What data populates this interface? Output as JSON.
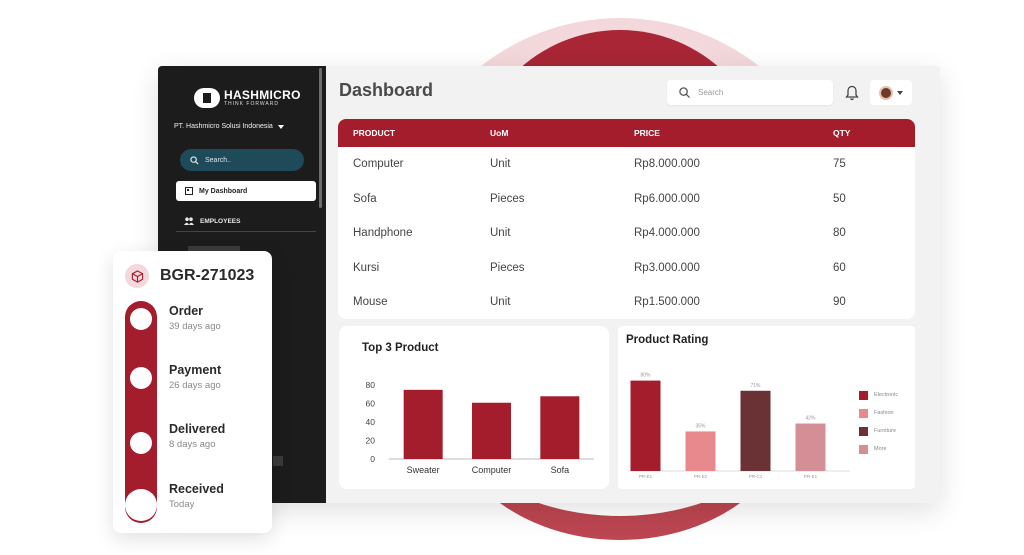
{
  "sidebar": {
    "brand": "HASHMICRO",
    "tagline": "THINK FORWARD",
    "company": "PT. Hashmicro Solusi Indonesia",
    "search_placeholder": "Search..",
    "items": [
      {
        "label": "My Dashboard",
        "icon": "dashboard-icon",
        "active": true
      },
      {
        "label": "EMPLOYEES",
        "icon": "users-icon",
        "active": false
      }
    ]
  },
  "header": {
    "title": "Dashboard",
    "search_placeholder": "Search"
  },
  "table": {
    "columns": [
      "PRODUCT",
      "UoM",
      "PRICE",
      "QTY"
    ],
    "rows": [
      [
        "Computer",
        "Unit",
        "Rp8.000.000",
        "75"
      ],
      [
        "Sofa",
        "Pieces",
        "Rp6.000.000",
        "50"
      ],
      [
        "Handphone",
        "Unit",
        "Rp4.000.000",
        "80"
      ],
      [
        "Kursi",
        "Pieces",
        "Rp3.000.000",
        "60"
      ],
      [
        "Mouse",
        "Unit",
        "Rp1.500.000",
        "90"
      ]
    ]
  },
  "chart_data": [
    {
      "type": "bar",
      "title": "Top 3 Product",
      "categories": [
        "Sweater",
        "Computer",
        "Sofa"
      ],
      "values": [
        75,
        61,
        68
      ],
      "yticks": [
        0,
        20,
        40,
        60,
        80
      ],
      "ylim": [
        0,
        90
      ],
      "color": "#a41d2d"
    },
    {
      "type": "bar",
      "title": "Product Rating",
      "categories": [
        "PR-E1",
        "PR-E2",
        "PR-C1",
        "PR-E1"
      ],
      "values": [
        80,
        35,
        71,
        42
      ],
      "labels": [
        "80%",
        "35%",
        "71%",
        "42%"
      ],
      "colors": [
        "#a41d2d",
        "#e8898d",
        "#6b3236",
        "#d48e96"
      ],
      "legend": [
        {
          "label": "Electronic",
          "color": "#a41d2d"
        },
        {
          "label": "Fashion",
          "color": "#e8898d"
        },
        {
          "label": "Furniture",
          "color": "#6b3236"
        },
        {
          "label": "More",
          "color": "#d48e96"
        }
      ],
      "legend_position": "right"
    }
  ],
  "tracking": {
    "id": "BGR-271023",
    "steps": [
      {
        "title": "Order",
        "time": "39 days ago"
      },
      {
        "title": "Payment",
        "time": "26 days ago"
      },
      {
        "title": "Delivered",
        "time": "8 days ago"
      },
      {
        "title": "Received",
        "time": "Today"
      }
    ]
  },
  "colors": {
    "accent": "#a41d2d",
    "sidebar_bg": "#1c1c1c"
  }
}
